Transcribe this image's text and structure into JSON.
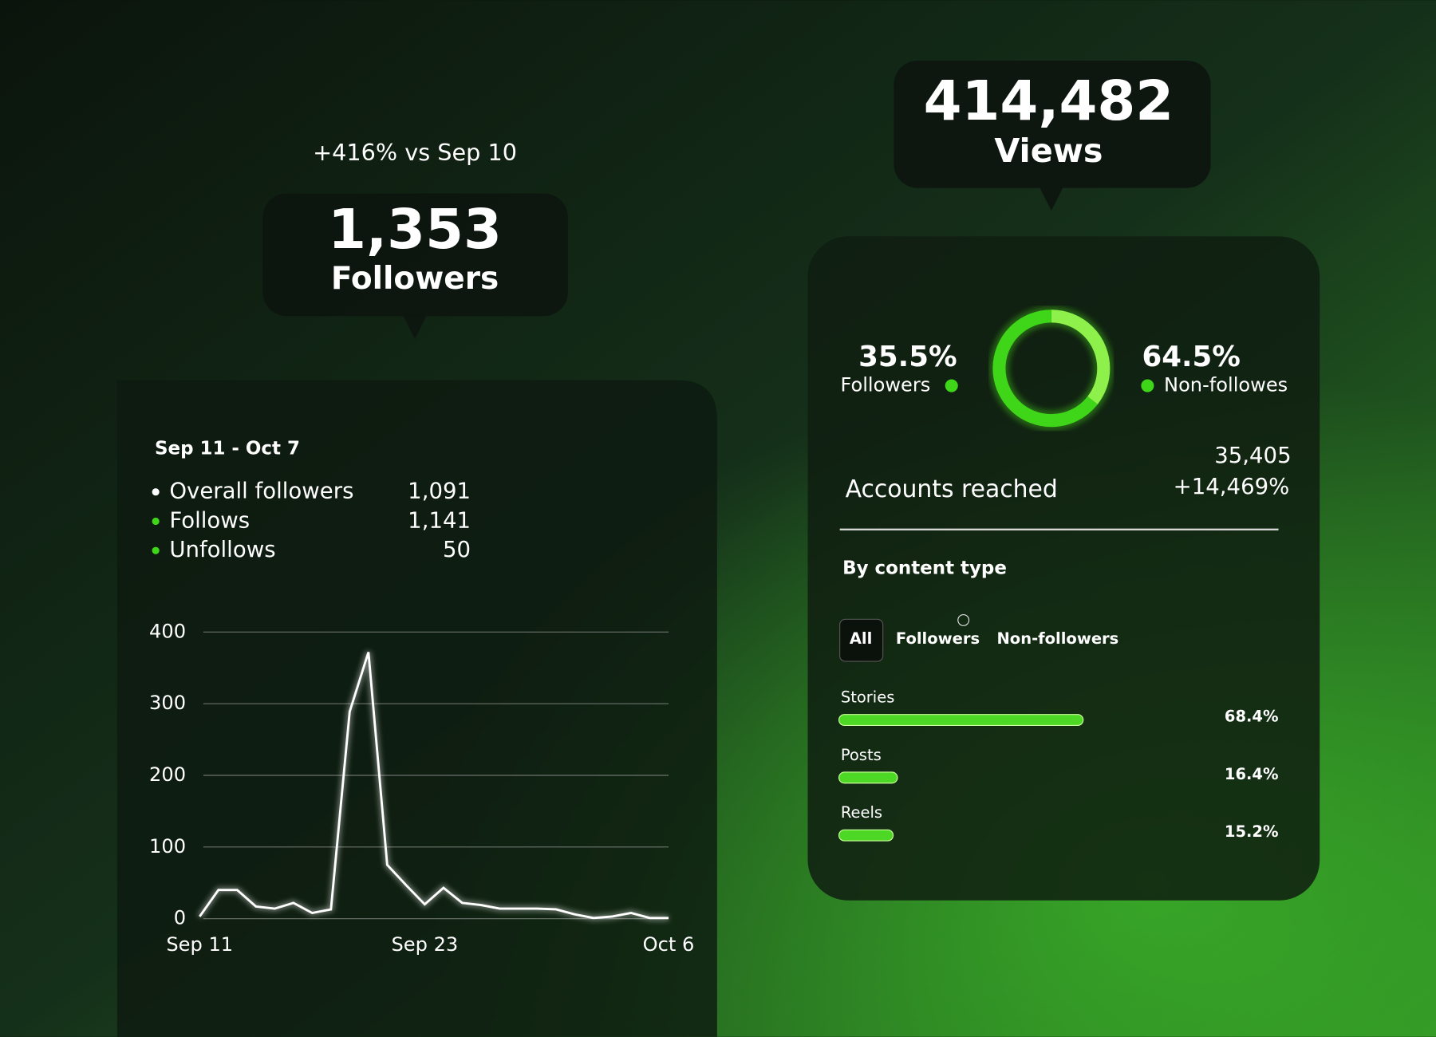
{
  "followers_card": {
    "change": "+416% vs Sep 10",
    "count": "1,353",
    "label": "Followers"
  },
  "views_card": {
    "count": "414,482",
    "label": "Views"
  },
  "followers_panel": {
    "date_range": "Sep 11 - Oct 7",
    "legend": [
      {
        "name": "Overall followers",
        "value": "1,091"
      },
      {
        "name": "Follows",
        "value": "1,141"
      },
      {
        "name": "Unfollows",
        "value": "50"
      }
    ]
  },
  "chart": {
    "type": "line",
    "categories": [
      "Sep 11",
      null,
      null,
      null,
      null,
      null,
      null,
      null,
      null,
      null,
      null,
      null,
      "Sep 23",
      null,
      null,
      null,
      null,
      null,
      null,
      null,
      null,
      null,
      null,
      null,
      null,
      "Oct 6"
    ],
    "values": [
      3,
      40,
      40,
      17,
      14,
      22,
      8,
      13,
      289,
      372,
      75,
      47,
      20,
      43,
      22,
      19,
      14,
      14,
      14,
      13,
      6,
      1,
      3,
      8,
      1,
      1
    ],
    "ylim": [
      0,
      400
    ],
    "yticks": [
      0,
      100,
      200,
      300,
      400
    ],
    "grid": true,
    "color": "#ffffff"
  },
  "reach_panel": {
    "donut": [
      {
        "label": "Followers",
        "value": 35.5,
        "value_label": "35.5%",
        "color": "#8ef04a"
      },
      {
        "label": "Non-followes",
        "value": 64.5,
        "value_label": "64.5%",
        "color": "#3fd61a"
      }
    ],
    "accounts_reached": {
      "label": "Accounts reached",
      "value": "35,405",
      "change": "+14,469%"
    },
    "content_heading": "By content type",
    "tabs": [
      "All",
      "Followers",
      "Non-followers"
    ],
    "content_types": [
      {
        "name": "Stories",
        "value": 68.4,
        "value_label": "68.4%"
      },
      {
        "name": "Posts",
        "value": 16.4,
        "value_label": "16.4%"
      },
      {
        "name": "Reels",
        "value": 15.2,
        "value_label": "15.2%"
      }
    ]
  }
}
